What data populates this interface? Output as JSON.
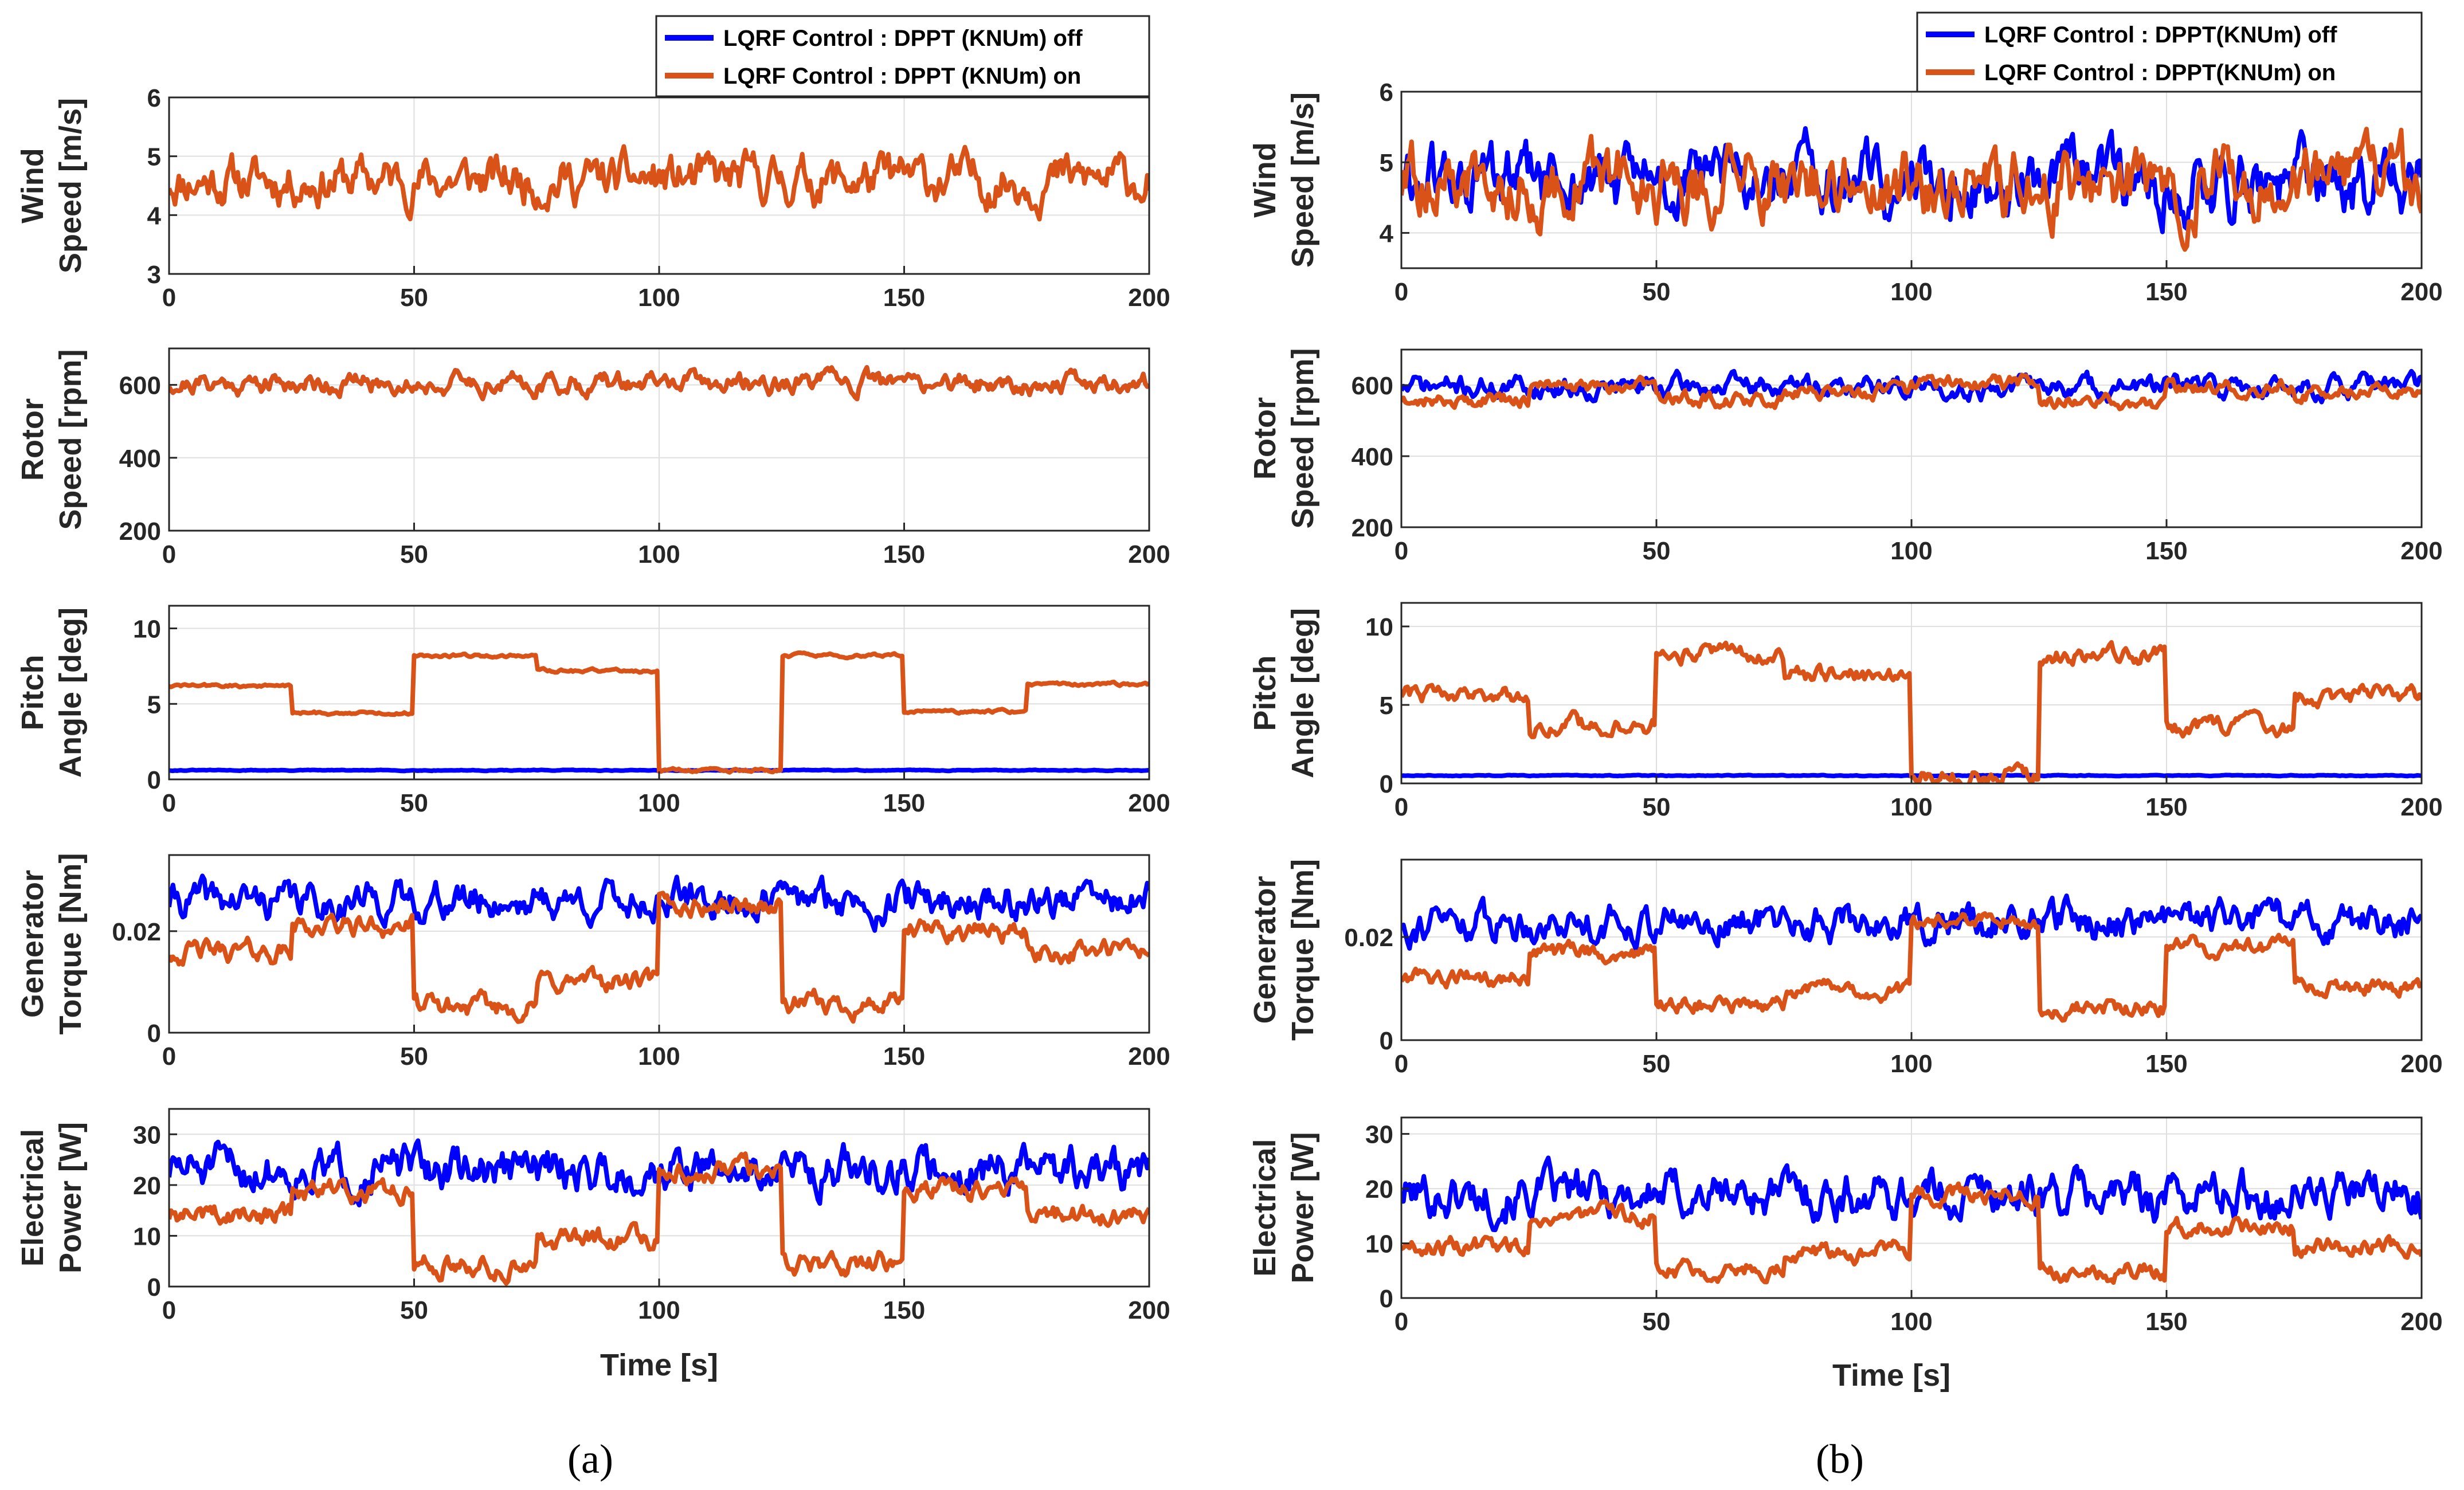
{
  "colors": {
    "off": "#0000FF",
    "on": "#D95319",
    "grid": "#DFDFDF",
    "axis": "#262626"
  },
  "panels": [
    {
      "caption": "(a)",
      "legend": {
        "off": "LQRF Control : DPPT (KNUm) off",
        "on": "LQRF Control : DPPT (KNUm) on"
      },
      "xlabel": "Time [s]"
    },
    {
      "caption": "(b)",
      "legend": {
        "off": "LQRF Control : DPPT(KNUm) off",
        "on": "LQRF Control : DPPT(KNUm) on"
      },
      "xlabel": "Time [s]"
    }
  ],
  "chart_data": [
    {
      "panel": "a",
      "type": "line",
      "ylabel": [
        "Wind",
        "Speed [m/s]"
      ],
      "xlim": [
        0,
        200
      ],
      "xticks": [
        0,
        50,
        100,
        150,
        200
      ],
      "ylim": [
        3,
        6
      ],
      "yticks": [
        3,
        4,
        5,
        6
      ],
      "ytick_labels": [
        "3",
        "4",
        "5",
        "6"
      ],
      "grid": true,
      "series": [
        {
          "name": "DPPT (KNUm) on",
          "color": "on",
          "mean": 4.6,
          "noise": 0.28,
          "seed": 11,
          "segments": []
        }
      ]
    },
    {
      "panel": "a",
      "type": "line",
      "ylabel": [
        "Rotor",
        "Speed [rpm]"
      ],
      "xlim": [
        0,
        200
      ],
      "xticks": [
        0,
        50,
        100,
        150,
        200
      ],
      "ylim": [
        200,
        700
      ],
      "yticks": [
        200,
        400,
        600
      ],
      "ytick_labels": [
        "200",
        "400",
        "600"
      ],
      "grid": true,
      "series": [
        {
          "name": "DPPT (KNUm) off",
          "color": "off",
          "mean": 605,
          "noise": 20,
          "seed": 21,
          "segments": []
        },
        {
          "name": "DPPT (KNUm) on",
          "color": "on",
          "mean": 605,
          "noise": 20,
          "seed": 21,
          "segments": []
        }
      ]
    },
    {
      "panel": "a",
      "type": "line",
      "ylabel": [
        "Pitch",
        "Angle [deg]"
      ],
      "xlim": [
        0,
        200
      ],
      "xticks": [
        0,
        50,
        100,
        150,
        200
      ],
      "ylim": [
        0,
        11.5
      ],
      "yticks": [
        0,
        5,
        10
      ],
      "ytick_labels": [
        "0",
        "5",
        "10"
      ],
      "grid": true,
      "series": [
        {
          "name": "DPPT (KNUm) off",
          "color": "off",
          "mean": 0.6,
          "noise": 0.02,
          "seed": 31,
          "segments": []
        },
        {
          "name": "DPPT (KNUm) on",
          "color": "on",
          "mean": 0,
          "noise": 0.08,
          "seed": 32,
          "segments": [
            [
              0,
              25,
              6.2
            ],
            [
              25,
              50,
              4.4
            ],
            [
              50,
              75,
              8.2
            ],
            [
              75,
              100,
              7.2
            ],
            [
              100,
              125,
              0.6
            ],
            [
              125,
              150,
              8.2
            ],
            [
              150,
              175,
              4.5
            ],
            [
              175,
              200,
              6.3
            ]
          ]
        }
      ]
    },
    {
      "panel": "a",
      "type": "line",
      "ylabel": [
        "Generator",
        "Torque [Nm]"
      ],
      "xlim": [
        0,
        200
      ],
      "xticks": [
        0,
        50,
        100,
        150,
        200
      ],
      "ylim": [
        0,
        0.035
      ],
      "yticks": [
        0,
        0.02
      ],
      "ytick_labels": [
        "0",
        "0.02"
      ],
      "grid": true,
      "series": [
        {
          "name": "DPPT (KNUm) off",
          "color": "off",
          "mean": 0.026,
          "noise": 0.0025,
          "seed": 41,
          "segments": []
        },
        {
          "name": "DPPT (KNUm) on",
          "color": "on",
          "mean": 0,
          "noise": 0.0015,
          "seed": 42,
          "segments": [
            [
              0,
              25,
              0.016
            ],
            [
              25,
              50,
              0.021
            ],
            [
              50,
              75,
              0.005
            ],
            [
              75,
              100,
              0.01
            ],
            [
              100,
              125,
              0.025
            ],
            [
              125,
              150,
              0.0055
            ],
            [
              150,
              175,
              0.02
            ],
            [
              175,
              200,
              0.016
            ]
          ]
        }
      ]
    },
    {
      "panel": "a",
      "type": "line",
      "ylabel": [
        "Electrical",
        "Power [W]"
      ],
      "xlim": [
        0,
        200
      ],
      "xticks": [
        0,
        50,
        100,
        150,
        200
      ],
      "ylim": [
        0,
        35
      ],
      "yticks": [
        0,
        10,
        20,
        30
      ],
      "ytick_labels": [
        "0",
        "10",
        "20",
        "30"
      ],
      "grid": true,
      "series": [
        {
          "name": "DPPT (KNUm) off",
          "color": "off",
          "mean": 23,
          "noise": 3,
          "seed": 51,
          "segments": []
        },
        {
          "name": "DPPT (KNUm) on",
          "color": "on",
          "mean": 0,
          "noise": 1.5,
          "seed": 52,
          "segments": [
            [
              0,
              25,
              14
            ],
            [
              25,
              50,
              19
            ],
            [
              50,
              75,
              4.5
            ],
            [
              75,
              100,
              9.5
            ],
            [
              100,
              125,
              23
            ],
            [
              125,
              150,
              5
            ],
            [
              150,
              175,
              19
            ],
            [
              175,
              200,
              14
            ]
          ]
        }
      ]
    },
    {
      "panel": "b",
      "type": "line",
      "ylabel": [
        "Wind",
        "Speed [m/s]"
      ],
      "xlim": [
        0,
        200
      ],
      "xticks": [
        0,
        50,
        100,
        150,
        200
      ],
      "ylim": [
        3.5,
        6
      ],
      "yticks": [
        4,
        5,
        6
      ],
      "ytick_labels": [
        "4",
        "5",
        "6"
      ],
      "grid": true,
      "series": [
        {
          "name": "DPPT(KNUm) off",
          "color": "off",
          "mean": 4.7,
          "noise": 0.35,
          "seed": 61,
          "segments": []
        },
        {
          "name": "DPPT(KNUm) on",
          "color": "on",
          "mean": 4.7,
          "noise": 0.35,
          "seed": 62,
          "segments": []
        }
      ]
    },
    {
      "panel": "b",
      "type": "line",
      "ylabel": [
        "Rotor",
        "Speed [rpm]"
      ],
      "xlim": [
        0,
        200
      ],
      "xticks": [
        0,
        50,
        100,
        150,
        200
      ],
      "ylim": [
        200,
        700
      ],
      "yticks": [
        200,
        400,
        600
      ],
      "ytick_labels": [
        "200",
        "400",
        "600"
      ],
      "grid": true,
      "series": [
        {
          "name": "DPPT(KNUm) off",
          "color": "off",
          "mean": 595,
          "noise": 22,
          "seed": 71,
          "segments": []
        },
        {
          "name": "DPPT(KNUm) on",
          "color": "on",
          "mean": 0,
          "noise": 15,
          "seed": 72,
          "segments": [
            [
              0,
              25,
              560
            ],
            [
              25,
              50,
              595
            ],
            [
              50,
              75,
              560
            ],
            [
              75,
              100,
              580
            ],
            [
              100,
              125,
              605
            ],
            [
              125,
              150,
              550
            ],
            [
              150,
              175,
              595
            ],
            [
              175,
              200,
              580
            ]
          ]
        }
      ]
    },
    {
      "panel": "b",
      "type": "line",
      "ylabel": [
        "Pitch",
        "Angle [deg]"
      ],
      "xlim": [
        0,
        200
      ],
      "xticks": [
        0,
        50,
        100,
        150,
        200
      ],
      "ylim": [
        0,
        11.5
      ],
      "yticks": [
        0,
        5,
        10
      ],
      "ytick_labels": [
        "0",
        "5",
        "10"
      ],
      "grid": true,
      "series": [
        {
          "name": "DPPT(KNUm) off",
          "color": "off",
          "mean": 0.5,
          "noise": 0.02,
          "seed": 81,
          "segments": []
        },
        {
          "name": "DPPT(KNUm) on",
          "color": "on",
          "mean": 0,
          "noise": 0.4,
          "seed": 82,
          "segments": [
            [
              0,
              25,
              5.7
            ],
            [
              25,
              50,
              3.7
            ],
            [
              50,
              75,
              8.3
            ],
            [
              75,
              100,
              6.8
            ],
            [
              100,
              125,
              0.5
            ],
            [
              125,
              150,
              8.2
            ],
            [
              150,
              175,
              3.6
            ],
            [
              175,
              200,
              5.6
            ]
          ]
        }
      ]
    },
    {
      "panel": "b",
      "type": "line",
      "ylabel": [
        "Generator",
        "Torque [Nm]"
      ],
      "xlim": [
        0,
        200
      ],
      "xticks": [
        0,
        50,
        100,
        150,
        200
      ],
      "ylim": [
        0,
        0.035
      ],
      "yticks": [
        0,
        0.02
      ],
      "ytick_labels": [
        "0",
        "0.02"
      ],
      "grid": true,
      "series": [
        {
          "name": "DPPT(KNUm) off",
          "color": "off",
          "mean": 0.023,
          "noise": 0.0025,
          "seed": 91,
          "segments": []
        },
        {
          "name": "DPPT(KNUm) on",
          "color": "on",
          "mean": 0,
          "noise": 0.0012,
          "seed": 92,
          "segments": [
            [
              0,
              25,
              0.012
            ],
            [
              25,
              50,
              0.017
            ],
            [
              50,
              75,
              0.007
            ],
            [
              75,
              100,
              0.0095
            ],
            [
              100,
              125,
              0.023
            ],
            [
              125,
              150,
              0.0065
            ],
            [
              150,
              175,
              0.018
            ],
            [
              175,
              200,
              0.0105
            ]
          ]
        }
      ]
    },
    {
      "panel": "b",
      "type": "line",
      "ylabel": [
        "Electrical",
        "Power [W]"
      ],
      "xlim": [
        0,
        200
      ],
      "xticks": [
        0,
        50,
        100,
        150,
        200
      ],
      "ylim": [
        0,
        33
      ],
      "yticks": [
        0,
        10,
        20,
        30
      ],
      "ytick_labels": [
        "0",
        "10",
        "20",
        "30"
      ],
      "grid": true,
      "series": [
        {
          "name": "DPPT(KNUm) off",
          "color": "off",
          "mean": 19,
          "noise": 3,
          "seed": 101,
          "segments": []
        },
        {
          "name": "DPPT(KNUm) on",
          "color": "on",
          "mean": 0,
          "noise": 1.2,
          "seed": 102,
          "segments": [
            [
              0,
              25,
              9.5
            ],
            [
              25,
              50,
              15
            ],
            [
              50,
              75,
              5.5
            ],
            [
              75,
              100,
              8.5
            ],
            [
              100,
              125,
              19
            ],
            [
              125,
              150,
              5
            ],
            [
              150,
              175,
              13
            ],
            [
              175,
              200,
              9.5
            ]
          ]
        }
      ]
    }
  ]
}
